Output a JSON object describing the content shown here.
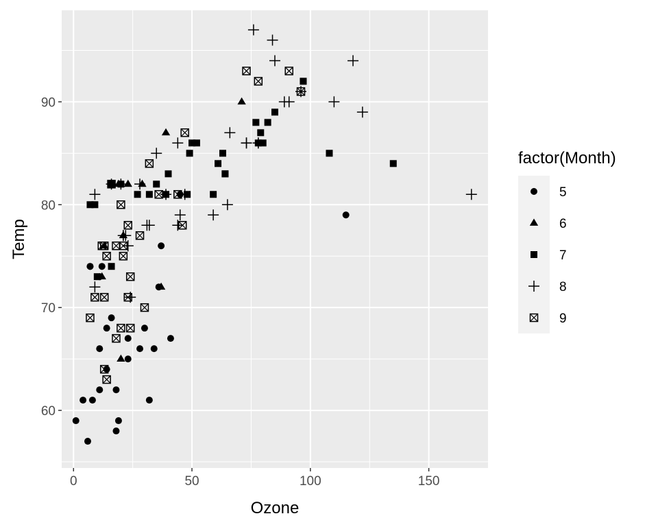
{
  "chart_data": {
    "type": "scatter",
    "xlabel": "Ozone",
    "ylabel": "Temp",
    "xlim": [
      -5,
      175
    ],
    "ylim": [
      54.4,
      98.9
    ],
    "x_ticks": [
      0,
      50,
      100,
      150
    ],
    "y_ticks": [
      60,
      70,
      80,
      90
    ],
    "grid": true,
    "panel_background": "#ebebeb",
    "legend": {
      "title": "factor(Month)",
      "placement": "right",
      "entries": [
        {
          "label": "5",
          "shape": "circle"
        },
        {
          "label": "6",
          "shape": "triangle"
        },
        {
          "label": "7",
          "shape": "square"
        },
        {
          "label": "8",
          "shape": "plus"
        },
        {
          "label": "9",
          "shape": "square-cross"
        }
      ]
    },
    "series": [
      {
        "name": "5",
        "shape": "circle",
        "points": [
          [
            41,
            67
          ],
          [
            36,
            72
          ],
          [
            12,
            74
          ],
          [
            18,
            62
          ],
          [
            28,
            66
          ],
          [
            23,
            65
          ],
          [
            19,
            59
          ],
          [
            8,
            61
          ],
          [
            7,
            74
          ],
          [
            16,
            69
          ],
          [
            11,
            66
          ],
          [
            14,
            68
          ],
          [
            18,
            58
          ],
          [
            14,
            64
          ],
          [
            34,
            66
          ],
          [
            6,
            57
          ],
          [
            30,
            68
          ],
          [
            11,
            62
          ],
          [
            1,
            59
          ],
          [
            11,
            73
          ],
          [
            4,
            61
          ],
          [
            32,
            61
          ],
          [
            23,
            67
          ],
          [
            45,
            81
          ],
          [
            115,
            79
          ],
          [
            37,
            76
          ],
          [
            7,
            74
          ]
        ]
      },
      {
        "name": "6",
        "shape": "triangle",
        "points": [
          [
            71,
            90
          ],
          [
            39,
            87
          ],
          [
            21,
            77
          ],
          [
            37,
            72
          ],
          [
            20,
            65
          ],
          [
            12,
            73
          ],
          [
            13,
            76
          ],
          [
            23,
            82
          ],
          [
            29,
            82
          ],
          [
            19,
            82
          ]
        ]
      },
      {
        "name": "7",
        "shape": "square",
        "points": [
          [
            135,
            84
          ],
          [
            49,
            85
          ],
          [
            32,
            81
          ],
          [
            64,
            83
          ],
          [
            40,
            83
          ],
          [
            77,
            88
          ],
          [
            97,
            92
          ],
          [
            97,
            92
          ],
          [
            85,
            89
          ],
          [
            10,
            73
          ],
          [
            27,
            81
          ],
          [
            7,
            80
          ],
          [
            48,
            81
          ],
          [
            35,
            82
          ],
          [
            61,
            84
          ],
          [
            79,
            87
          ],
          [
            63,
            85
          ],
          [
            16,
            74
          ],
          [
            80,
            86
          ],
          [
            108,
            85
          ],
          [
            20,
            82
          ],
          [
            52,
            86
          ],
          [
            82,
            88
          ],
          [
            50,
            86
          ],
          [
            64,
            83
          ],
          [
            59,
            81
          ],
          [
            39,
            81
          ],
          [
            9,
            80
          ],
          [
            16,
            82
          ],
          [
            78,
            86
          ]
        ]
      },
      {
        "name": "8",
        "shape": "plus",
        "points": [
          [
            39,
            81
          ],
          [
            9,
            81
          ],
          [
            16,
            82
          ],
          [
            78,
            86
          ],
          [
            35,
            85
          ],
          [
            66,
            87
          ],
          [
            122,
            89
          ],
          [
            89,
            90
          ],
          [
            110,
            90
          ],
          [
            44,
            86
          ],
          [
            28,
            82
          ],
          [
            65,
            80
          ],
          [
            22,
            77
          ],
          [
            59,
            79
          ],
          [
            23,
            76
          ],
          [
            31,
            78
          ],
          [
            44,
            78
          ],
          [
            21,
            77
          ],
          [
            9,
            72
          ],
          [
            45,
            79
          ],
          [
            168,
            81
          ],
          [
            73,
            86
          ],
          [
            76,
            97
          ],
          [
            118,
            94
          ],
          [
            84,
            96
          ],
          [
            85,
            94
          ],
          [
            96,
            91
          ],
          [
            78,
            86
          ],
          [
            73,
            86
          ],
          [
            91,
            90
          ],
          [
            47,
            81
          ],
          [
            32,
            78
          ],
          [
            20,
            82
          ],
          [
            23,
            76
          ],
          [
            21,
            77
          ],
          [
            24,
            71
          ]
        ]
      },
      {
        "name": "9",
        "shape": "square-cross",
        "points": [
          [
            96,
            91
          ],
          [
            78,
            92
          ],
          [
            73,
            93
          ],
          [
            91,
            93
          ],
          [
            47,
            87
          ],
          [
            32,
            84
          ],
          [
            20,
            80
          ],
          [
            23,
            78
          ],
          [
            21,
            75
          ],
          [
            24,
            73
          ],
          [
            44,
            81
          ],
          [
            21,
            76
          ],
          [
            28,
            77
          ],
          [
            9,
            71
          ],
          [
            13,
            71
          ],
          [
            46,
            78
          ],
          [
            18,
            67
          ],
          [
            13,
            76
          ],
          [
            24,
            68
          ],
          [
            16,
            82
          ],
          [
            13,
            64
          ],
          [
            23,
            71
          ],
          [
            36,
            81
          ],
          [
            7,
            69
          ],
          [
            14,
            63
          ],
          [
            30,
            70
          ],
          [
            14,
            75
          ],
          [
            18,
            76
          ],
          [
            20,
            68
          ],
          [
            12,
            76
          ]
        ]
      }
    ]
  }
}
